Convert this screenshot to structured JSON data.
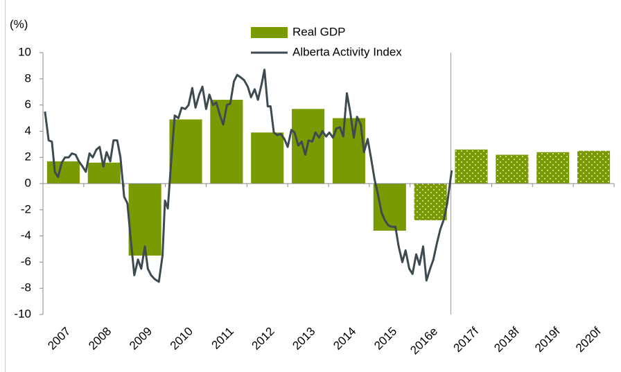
{
  "chart_data": {
    "type": "bar",
    "y_label": "(%)",
    "categories": [
      "2007",
      "2008",
      "2009",
      "2010",
      "2011",
      "2012",
      "2013",
      "2014",
      "2015",
      "2016e",
      "2017f",
      "2018f",
      "2019f",
      "2020f"
    ],
    "xlim": [
      2007,
      2021
    ],
    "ylim": [
      -10,
      10
    ],
    "yticks": [
      -10,
      -8,
      -6,
      -4,
      -2,
      0,
      2,
      4,
      6,
      8,
      10
    ],
    "divider_index": 10,
    "series": [
      {
        "name": "Real GDP",
        "type": "bar",
        "color": "#7a9a01",
        "values": [
          1.7,
          1.6,
          -5.5,
          4.9,
          6.4,
          3.9,
          5.7,
          5.0,
          -3.6,
          -2.8,
          2.6,
          2.2,
          2.4,
          2.5
        ],
        "dotted": [
          false,
          false,
          false,
          false,
          false,
          false,
          false,
          false,
          false,
          true,
          true,
          true,
          true,
          true
        ]
      },
      {
        "name": "Alberta Activity Index",
        "type": "line",
        "color": "#3d4a50",
        "x": [
          2007.05,
          2007.14,
          2007.22,
          2007.29,
          2007.37,
          2007.46,
          2007.54,
          2007.63,
          2007.71,
          2007.8,
          2007.88,
          2007.97,
          2008.05,
          2008.14,
          2008.22,
          2008.31,
          2008.39,
          2008.48,
          2008.56,
          2008.65,
          2008.73,
          2008.82,
          2008.9,
          2008.99,
          2009.07,
          2009.16,
          2009.24,
          2009.33,
          2009.41,
          2009.5,
          2009.57,
          2009.65,
          2009.74,
          2009.84,
          2009.93,
          2009.99,
          2010.06,
          2010.15,
          2010.23,
          2010.32,
          2010.4,
          2010.49,
          2010.57,
          2010.66,
          2010.74,
          2010.83,
          2010.91,
          2011.0,
          2011.08,
          2011.17,
          2011.25,
          2011.34,
          2011.42,
          2011.51,
          2011.59,
          2011.68,
          2011.76,
          2011.85,
          2011.93,
          2012.02,
          2012.1,
          2012.19,
          2012.27,
          2012.36,
          2012.43,
          2012.51,
          2012.58,
          2012.66,
          2012.75,
          2012.83,
          2012.92,
          2013.0,
          2013.09,
          2013.17,
          2013.26,
          2013.34,
          2013.43,
          2013.51,
          2013.6,
          2013.68,
          2013.77,
          2013.85,
          2013.94,
          2014.02,
          2014.11,
          2014.19,
          2014.28,
          2014.36,
          2014.45,
          2014.53,
          2014.62,
          2014.7,
          2014.79,
          2014.87,
          2014.96,
          2015.04,
          2015.13,
          2015.21,
          2015.3,
          2015.38,
          2015.47,
          2015.55,
          2015.64,
          2015.72,
          2015.81,
          2015.89,
          2015.98,
          2016.06,
          2016.15,
          2016.23,
          2016.32,
          2016.4,
          2016.49,
          2016.57,
          2016.66,
          2016.74,
          2016.83,
          2016.91,
          2017.02
        ],
        "values": [
          5.5,
          3.3,
          3.2,
          0.9,
          0.5,
          1.6,
          2.0,
          2.0,
          2.3,
          2.2,
          1.7,
          1.3,
          0.9,
          2.3,
          2.0,
          2.6,
          2.8,
          1.3,
          2.4,
          1.7,
          3.3,
          3.3,
          2.0,
          -1.0,
          -1.5,
          -4.5,
          -7.0,
          -5.8,
          -6.5,
          -4.8,
          -6.5,
          -7.0,
          -7.3,
          -7.5,
          -5.5,
          -1.3,
          -1.9,
          2.0,
          5.2,
          5.0,
          5.8,
          5.7,
          6.0,
          7.3,
          5.8,
          6.8,
          7.4,
          5.7,
          6.8,
          6.0,
          6.2,
          5.2,
          4.5,
          6.0,
          6.1,
          7.8,
          8.3,
          8.1,
          7.9,
          7.4,
          6.6,
          7.2,
          6.4,
          7.6,
          8.7,
          5.9,
          5.9,
          3.9,
          3.7,
          3.8,
          3.4,
          2.8,
          4.1,
          3.9,
          2.9,
          3.2,
          2.2,
          3.3,
          3.2,
          3.9,
          3.5,
          4.0,
          3.6,
          3.9,
          3.5,
          4.2,
          4.3,
          3.6,
          6.9,
          5.5,
          3.5,
          5.1,
          4.5,
          2.4,
          3.4,
          2.0,
          0.3,
          -0.8,
          -2.2,
          -2.8,
          -3.2,
          -3.3,
          -3.3,
          -4.8,
          -6.0,
          -5.1,
          -6.5,
          -6.9,
          -5.4,
          -6.2,
          -4.8,
          -7.4,
          -6.5,
          -5.8,
          -4.5,
          -3.5,
          -2.7,
          -1.5,
          1.0
        ]
      }
    ]
  }
}
